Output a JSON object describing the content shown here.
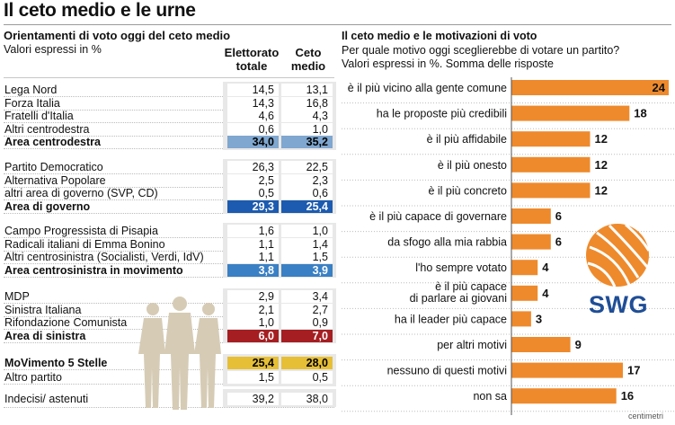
{
  "title": "Il ceto medio e le urne",
  "left": {
    "subtitle": "Orientamenti di voto oggi del ceto medio",
    "note": "Valori espressi in %",
    "col1": "Elettorato totale",
    "col2": "Ceto medio",
    "groups": [
      {
        "rows": [
          {
            "label": "Lega Nord",
            "total": "14,5",
            "middle": "13,1"
          },
          {
            "label": "Forza Italia",
            "total": "14,3",
            "middle": "16,8"
          },
          {
            "label": "Fratelli d'Italia",
            "total": "4,6",
            "middle": "4,3"
          },
          {
            "label": "Altri centrodestra",
            "total": "0,6",
            "middle": "1,0"
          }
        ],
        "summary": {
          "label": "Area centrodestra",
          "total": "34,0",
          "middle": "35,2",
          "color": "#7fa7cf",
          "text_color": "#000000"
        }
      },
      {
        "rows": [
          {
            "label": "Partito Democratico",
            "total": "26,3",
            "middle": "22,5"
          },
          {
            "label": "Alternativa Popolare",
            "total": "2,5",
            "middle": "2,3"
          },
          {
            "label": "altri area di governo (SVP, CD)",
            "total": "0,5",
            "middle": "0,6"
          }
        ],
        "summary": {
          "label": "Area di governo",
          "total": "29,3",
          "middle": "25,4",
          "color": "#1c5bb0",
          "text_color": "#ffffff"
        }
      },
      {
        "rows": [
          {
            "label": "Campo Progressista di Pisapia",
            "total": "1,6",
            "middle": "1,0"
          },
          {
            "label": "Radicali italiani di Emma Bonino",
            "total": "1,1",
            "middle": "1,4"
          },
          {
            "label": "Altri centrosinistra (Socialisti, Verdi, IdV)",
            "total": "1,1",
            "middle": "1,5"
          }
        ],
        "summary": {
          "label": "Area centrosinistra in movimento",
          "total": "3,8",
          "middle": "3,9",
          "color": "#3a80c4",
          "text_color": "#ffffff"
        }
      },
      {
        "rows": [
          {
            "label": "MDP",
            "total": "2,9",
            "middle": "3,4"
          },
          {
            "label": "Sinistra Italiana",
            "total": "2,1",
            "middle": "2,7"
          },
          {
            "label": "Rifondazione Comunista",
            "total": "1,0",
            "middle": "0,9"
          }
        ],
        "summary": {
          "label": "Area di sinistra",
          "total": "6,0",
          "middle": "7,0",
          "color": "#a51e22",
          "text_color": "#ffffff"
        }
      }
    ],
    "m5s": {
      "label": "MoVimento 5 Stelle",
      "total": "25,4",
      "middle": "28,0",
      "color": "#e6bf36",
      "text_color": "#000000"
    },
    "altro": {
      "label": "Altro partito",
      "total": "1,5",
      "middle": "0,5"
    },
    "indecisi": {
      "label": "Indecisi/ astenuti",
      "total": "39,2",
      "middle": "38,0"
    }
  },
  "right": {
    "title": "Il ceto medio e le motivazioni di voto",
    "question": "Per quale motivo oggi sceglierebbe di votare un partito?",
    "note": "Valori espressi in %. Somma delle risposte",
    "logo": "SWG",
    "credit": "centimetri"
  },
  "chart_data": {
    "type": "bar",
    "orientation": "horizontal",
    "title": "Il ceto medio e le motivazioni di voto",
    "bar_color": "#ee8a2c",
    "categories": [
      "è il più vicino alla gente comune",
      "ha le proposte più credibili",
      "è il più affidabile",
      "è il più onesto",
      "è il più concreto",
      "è il più capace di governare",
      "da sfogo alla mia rabbia",
      "l'ho sempre votato",
      "è il più capace di parlare ai giovani",
      "ha il leader più capace",
      "per altri motivi",
      "nessuno di questi motivi",
      "non sa"
    ],
    "category_lines": [
      [
        "è il più vicino alla gente comune"
      ],
      [
        "ha le proposte più credibili"
      ],
      [
        "è il più affidabile"
      ],
      [
        "è il più onesto"
      ],
      [
        "è il più concreto"
      ],
      [
        "è il più capace di governare"
      ],
      [
        "da sfogo alla mia rabbia"
      ],
      [
        "l'ho sempre votato"
      ],
      [
        "è il più capace",
        "di parlare ai giovani"
      ],
      [
        "ha il leader più capace"
      ],
      [
        "per altri motivi"
      ],
      [
        "nessuno di questi motivi"
      ],
      [
        "non sa"
      ]
    ],
    "values": [
      24,
      18,
      12,
      12,
      12,
      6,
      6,
      4,
      4,
      3,
      9,
      17,
      16
    ],
    "xlim": [
      0,
      24
    ]
  }
}
